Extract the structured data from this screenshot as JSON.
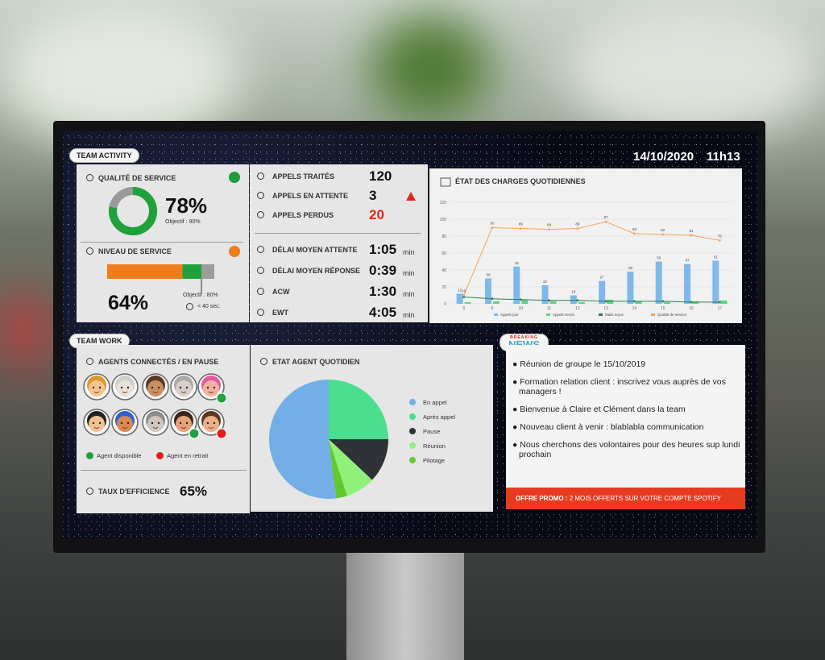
{
  "header": {
    "team_activity": "TEAM ACTIVITY",
    "date": "14/10/2020",
    "time": "11h13"
  },
  "quality": {
    "title": "QUALITÉ DE SERVICE",
    "rate": {
      "value": 78,
      "label": "78%"
    },
    "objective": "Objectif : 90%"
  },
  "service_level": {
    "title": "NIVEAU DE SERVICE",
    "rate": {
      "value": 64,
      "label": "64%"
    },
    "objective": {
      "value": 80,
      "label": "Objectif : 80%"
    },
    "delay": "< 40 sec."
  },
  "calls": [
    {
      "label": "APPELS TRAITÉS",
      "value": "120"
    },
    {
      "label": "APPELS EN ATTENTE",
      "value": "3"
    },
    {
      "label": "APPELS PERDUS",
      "value": "20"
    }
  ],
  "times": [
    {
      "label": "DÉLAI MOYEN ATTENTE",
      "value": "1:05",
      "unit": "min"
    },
    {
      "label": "DÉLAI MOYEN RÉPONSE",
      "value": "0:39",
      "unit": "min"
    },
    {
      "label": "ACW",
      "value": "1:30",
      "unit": "min"
    },
    {
      "label": "EWT",
      "value": "4:05",
      "unit": "min"
    }
  ],
  "charges_chart": {
    "type": "bar",
    "title": "ÉTAT DES CHARGES QUOTIDIENNES",
    "categories": [
      "8",
      "9",
      "10",
      "11",
      "12",
      "13",
      "14",
      "15",
      "16",
      "17"
    ],
    "ylim": [
      0,
      120
    ],
    "yticks": [
      0,
      20,
      40,
      60,
      80,
      100,
      120
    ],
    "grid": true,
    "series": [
      {
        "name": "Appels jour",
        "kind": "bar",
        "color": "#7fb8ea",
        "values": [
          12,
          30,
          44,
          22,
          10,
          27,
          38,
          50,
          47,
          51
        ]
      },
      {
        "name": "Appels servis",
        "kind": "bar",
        "color": "#5fd38a",
        "values": [
          2,
          3,
          5,
          3,
          2,
          5,
          3,
          2,
          3,
          4
        ]
      },
      {
        "name": "Mails reçus",
        "kind": "line",
        "color": "#2e7d4f",
        "values": [
          8,
          6,
          5,
          4,
          4,
          3,
          3,
          3,
          2,
          2
        ]
      },
      {
        "name": "Qualité de service",
        "kind": "line",
        "color": "#f5a45a",
        "values": [
          10,
          90,
          89,
          88,
          89,
          97,
          83,
          82,
          81,
          75
        ]
      }
    ]
  },
  "team_work": {
    "title": "TEAM WORK",
    "agents_title": "AGENTS CONNECTÉS / EN PAUSE",
    "available": "Agent disponible",
    "retired": "Agent en retrait",
    "efficiency_label": "TAUX D'EFFICIENCE",
    "efficiency": "65%"
  },
  "agent_pie": {
    "type": "pie",
    "title": "ETAT AGENT QUOTIDIEN",
    "categories": [
      "En appel",
      "Après appel",
      "Pause",
      "Réunion",
      "Pilotage"
    ],
    "values": [
      52,
      25,
      12,
      8,
      3
    ],
    "colors": [
      "#74aee6",
      "#4cde8f",
      "#2f3236",
      "#8ff07a",
      "#62c92a"
    ]
  },
  "news": {
    "logo_top": "BREAKING",
    "logo": "NEWS",
    "items": [
      "Réunion de groupe le 15/10/2019",
      "Formation relation client : inscrivez vous auprès de vos managers !",
      "Bienvenue à Claire et Clément dans la team",
      "Nouveau client à venir : blablabla communication",
      "Nous cherchons des volontaires pour des heures sup lundi prochain"
    ],
    "promo_label": "OFFRE PROMO :",
    "promo_text": "2 MOIS OFFERTS SUR VOTRE COMPTE SPOTIFY"
  }
}
